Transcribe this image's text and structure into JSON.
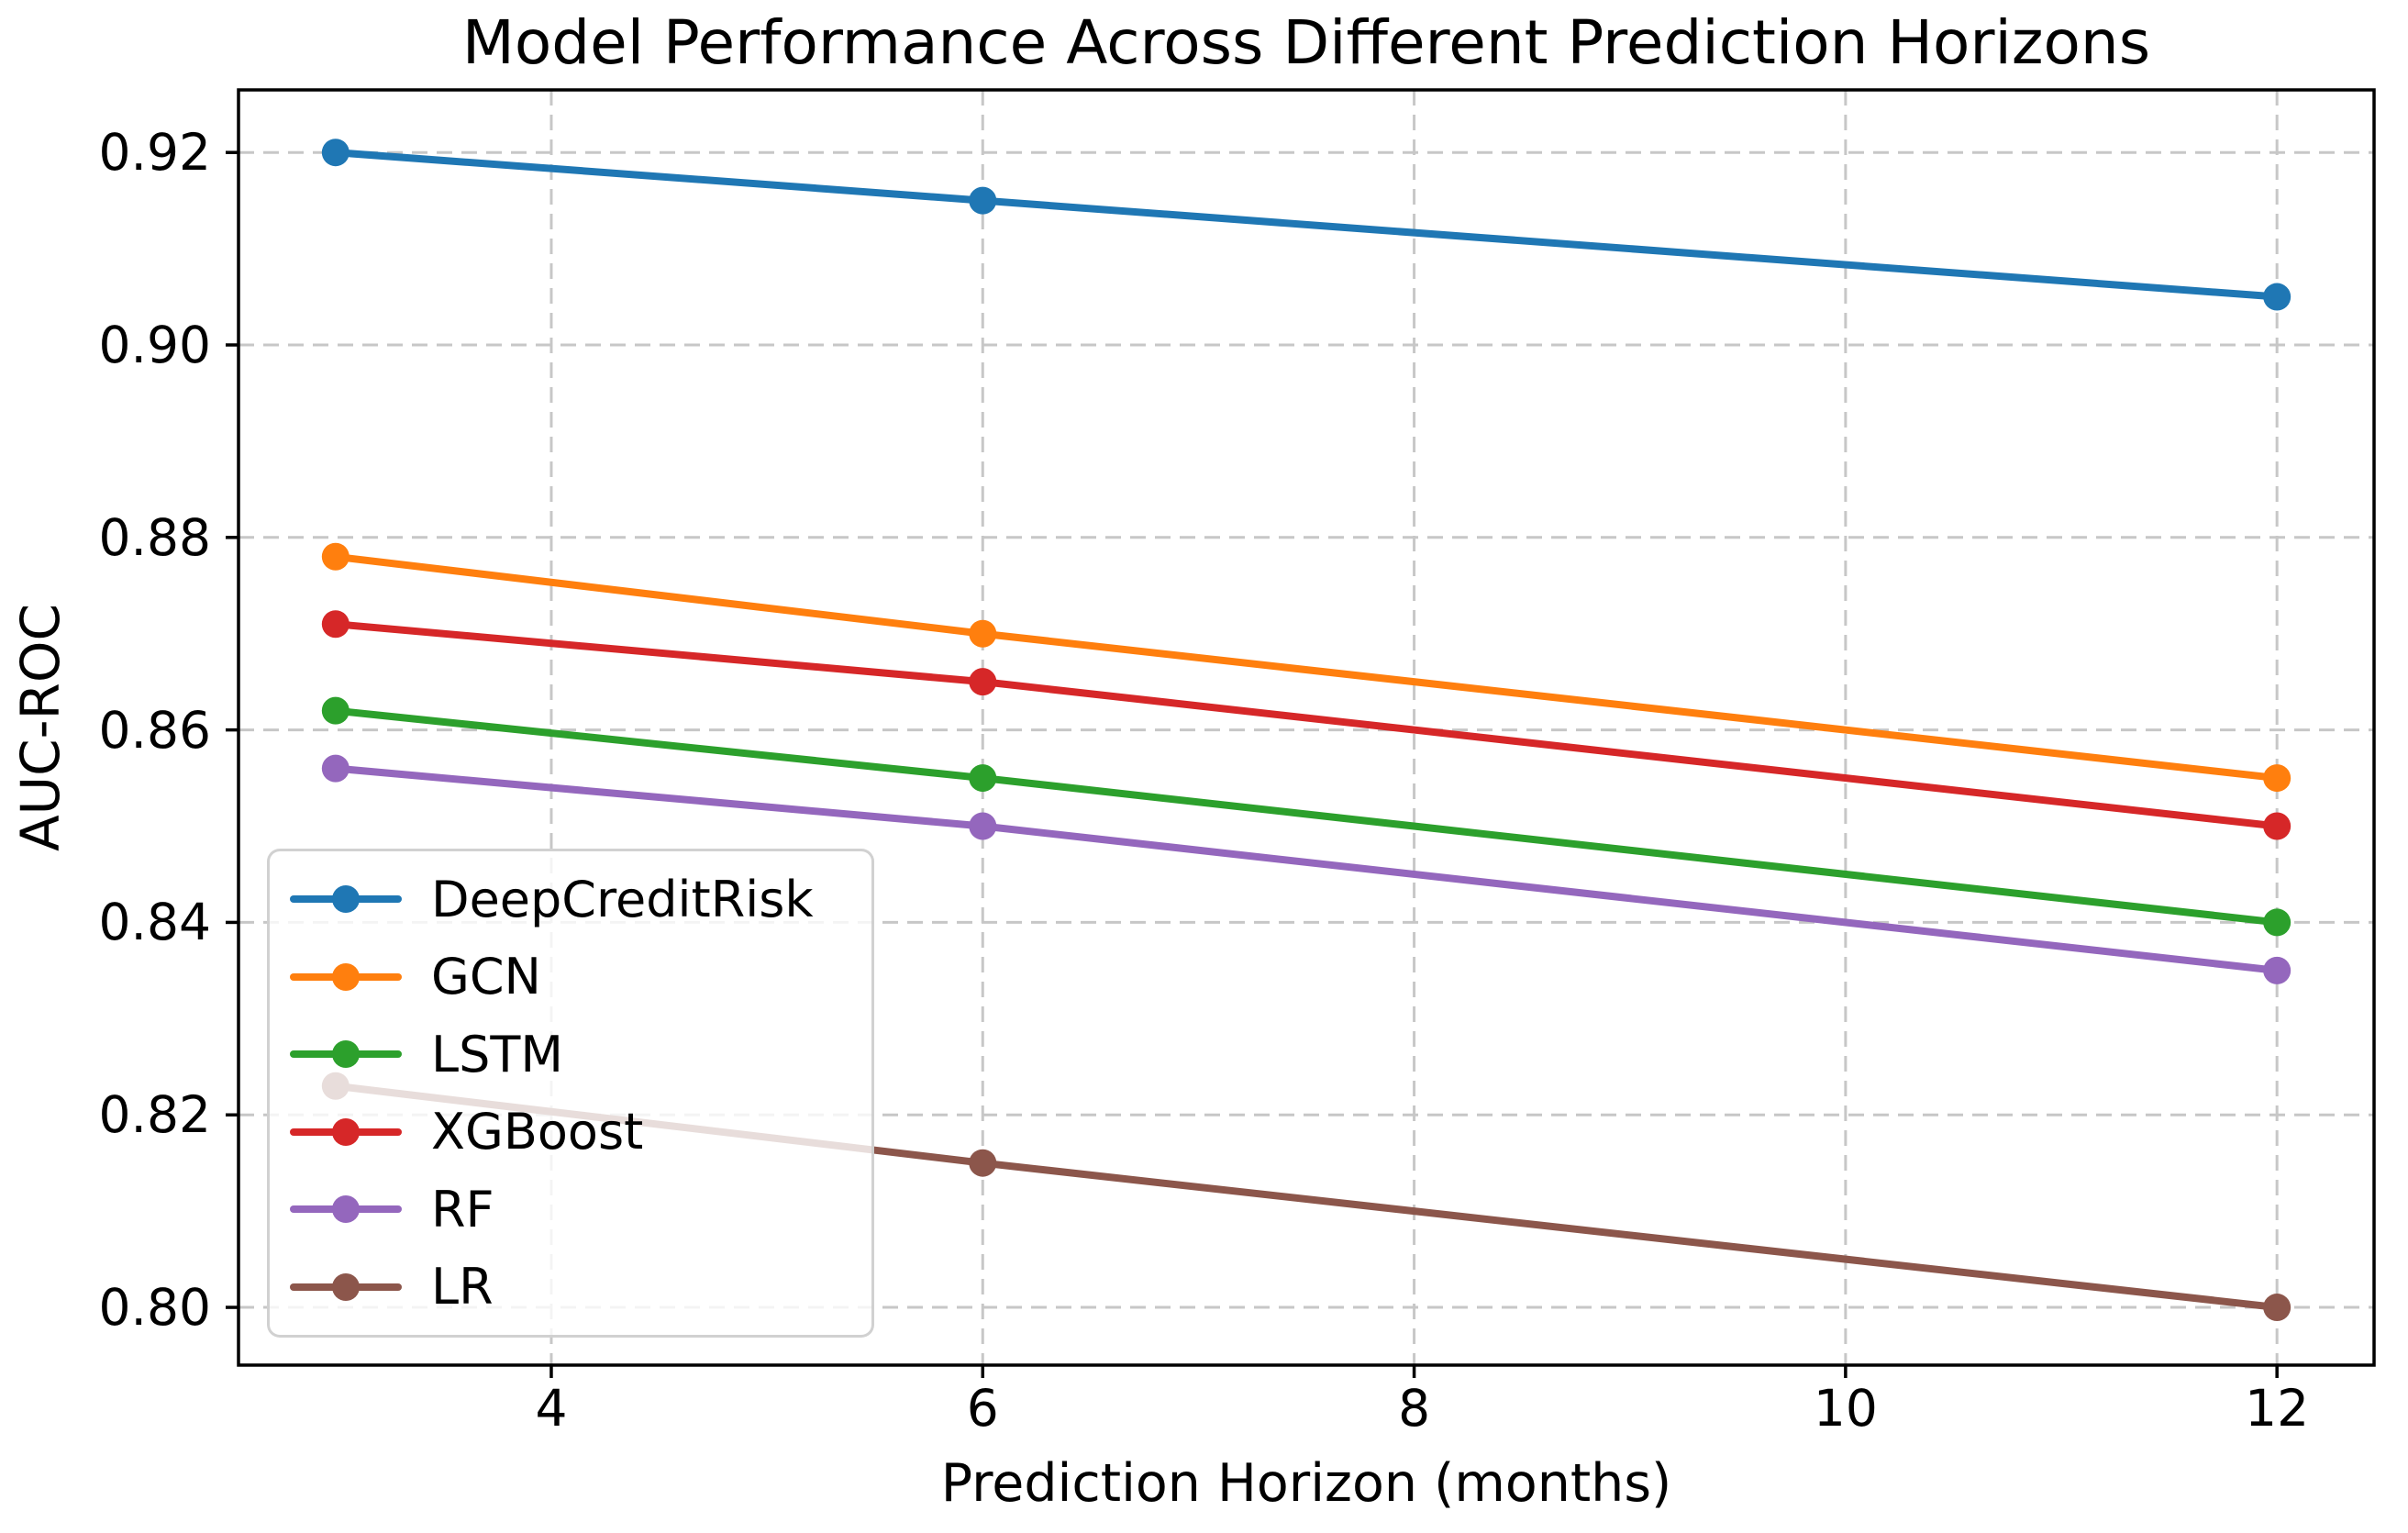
{
  "chart_data": {
    "type": "line",
    "title": "Model Performance Across Different Prediction Horizons",
    "xlabel": "Prediction Horizon (months)",
    "ylabel": "AUC-ROC",
    "x": [
      3,
      6,
      12
    ],
    "series": [
      {
        "name": "DeepCreditRisk",
        "color": "#1f77b4",
        "values": [
          0.92,
          0.915,
          0.905
        ]
      },
      {
        "name": "GCN",
        "color": "#ff7f0e",
        "values": [
          0.878,
          0.87,
          0.855
        ]
      },
      {
        "name": "LSTM",
        "color": "#2ca02c",
        "values": [
          0.862,
          0.855,
          0.84
        ]
      },
      {
        "name": "XGBoost",
        "color": "#d62728",
        "values": [
          0.871,
          0.865,
          0.85
        ]
      },
      {
        "name": "RF",
        "color": "#9467bd",
        "values": [
          0.856,
          0.85,
          0.835
        ]
      },
      {
        "name": "LR",
        "color": "#8c564b",
        "values": [
          0.823,
          0.815,
          0.8
        ]
      }
    ],
    "xticks": [
      4,
      6,
      8,
      10,
      12
    ],
    "yticks": [
      0.8,
      0.82,
      0.84,
      0.86,
      0.88,
      0.9,
      0.92
    ],
    "xlim": [
      2.55,
      12.45
    ],
    "ylim": [
      0.794,
      0.9265
    ],
    "grid": true,
    "grid_style": "dashed",
    "grid_color": "#c7c7c7",
    "legend_position": "lower left"
  }
}
